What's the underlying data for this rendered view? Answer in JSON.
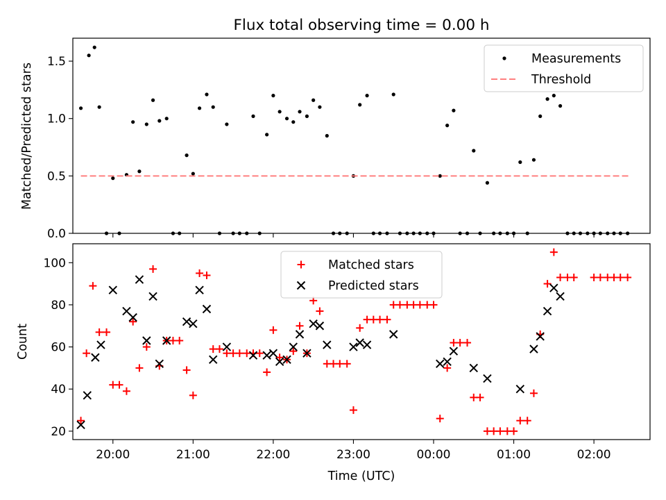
{
  "chart_data": [
    {
      "type": "scatter",
      "title": "Flux total observing time = 0.00 h",
      "xlabel": "",
      "ylabel": "Matched/Predicted stars",
      "ylim": [
        0,
        1.7
      ],
      "yticks": [
        0.0,
        0.5,
        1.0,
        1.5
      ],
      "ytick_labels": [
        "0.0",
        "0.5",
        "1.0",
        "1.5"
      ],
      "xlim": [
        19.5,
        26.7
      ],
      "xticks": [
        20,
        21,
        22,
        23,
        24,
        25,
        26
      ],
      "legend_position": "upper-right",
      "series": [
        {
          "name": "Measurements",
          "kind": "points",
          "color": "#000000",
          "x": [
            19.6,
            19.7,
            19.77,
            19.83,
            19.92,
            20.0,
            20.08,
            20.17,
            20.25,
            20.33,
            20.42,
            20.5,
            20.58,
            20.67,
            20.75,
            20.83,
            20.92,
            21.0,
            21.08,
            21.17,
            21.25,
            21.33,
            21.42,
            21.5,
            21.58,
            21.67,
            21.75,
            21.83,
            21.92,
            22.0,
            22.08,
            22.17,
            22.25,
            22.33,
            22.42,
            22.5,
            22.58,
            22.67,
            22.75,
            22.83,
            22.92,
            23.0,
            23.08,
            23.17,
            23.25,
            23.33,
            23.42,
            23.5,
            23.58,
            23.67,
            23.75,
            23.83,
            23.92,
            24.0,
            24.08,
            24.17,
            24.25,
            24.33,
            24.42,
            24.5,
            24.58,
            24.67,
            24.75,
            24.83,
            24.92,
            25.0,
            25.08,
            25.17,
            25.25,
            25.33,
            25.42,
            25.5,
            25.58,
            25.67,
            25.75,
            25.83,
            25.92,
            26.0,
            26.08,
            26.17,
            26.25,
            26.33,
            26.42
          ],
          "y": [
            1.09,
            1.55,
            1.62,
            1.1,
            0.0,
            0.48,
            0.0,
            0.51,
            0.97,
            0.54,
            0.95,
            1.16,
            0.98,
            1.0,
            0.0,
            0.0,
            0.68,
            0.52,
            1.09,
            1.21,
            1.1,
            0.0,
            0.95,
            0.0,
            0.0,
            0.0,
            1.02,
            0.0,
            0.86,
            1.2,
            1.06,
            1.0,
            0.97,
            1.06,
            1.02,
            1.16,
            1.1,
            0.85,
            0.0,
            0.0,
            0.0,
            0.5,
            1.12,
            1.2,
            0.0,
            0.0,
            0.0,
            1.21,
            0.0,
            0.0,
            0.0,
            0.0,
            0.0,
            0.0,
            0.5,
            0.94,
            1.07,
            0.0,
            0.0,
            0.72,
            0.0,
            0.44,
            0.0,
            0.0,
            0.0,
            0.0,
            0.62,
            0.0,
            0.64,
            1.02,
            1.17,
            1.2,
            1.11,
            0.0,
            0.0,
            0.0,
            0.0,
            0.0,
            0.0,
            0.0,
            0.0,
            0.0,
            0.0
          ]
        },
        {
          "name": "Threshold",
          "kind": "dashed-line",
          "color": "#ff7f7f",
          "x": [
            19.6,
            26.45
          ],
          "y": [
            0.5,
            0.5
          ]
        }
      ]
    },
    {
      "type": "scatter",
      "title": "",
      "xlabel": "Time (UTC)",
      "ylabel": "Count",
      "ylim": [
        16,
        109
      ],
      "yticks": [
        20,
        40,
        60,
        80,
        100
      ],
      "ytick_labels": [
        "20",
        "40",
        "60",
        "80",
        "100"
      ],
      "xlim": [
        19.5,
        26.7
      ],
      "xticks": [
        20,
        21,
        22,
        23,
        24,
        25,
        26
      ],
      "xtick_labels": [
        "20:00",
        "21:00",
        "22:00",
        "23:00",
        "00:00",
        "01:00",
        "02:00"
      ],
      "legend_position": "upper-center",
      "series": [
        {
          "name": "Matched stars",
          "kind": "plus",
          "color": "#ff0000",
          "x": [
            19.6,
            19.67,
            19.75,
            19.83,
            19.92,
            20.0,
            20.08,
            20.17,
            20.25,
            20.33,
            20.42,
            20.5,
            20.58,
            20.67,
            20.75,
            20.83,
            20.92,
            21.0,
            21.08,
            21.17,
            21.25,
            21.33,
            21.42,
            21.5,
            21.58,
            21.67,
            21.75,
            21.83,
            21.92,
            22.0,
            22.08,
            22.17,
            22.25,
            22.33,
            22.42,
            22.5,
            22.58,
            22.67,
            22.75,
            22.83,
            22.92,
            23.0,
            23.08,
            23.17,
            23.25,
            23.33,
            23.42,
            23.5,
            23.58,
            23.67,
            23.75,
            23.83,
            23.92,
            24.0,
            24.08,
            24.17,
            24.25,
            24.33,
            24.42,
            24.5,
            24.58,
            24.67,
            24.75,
            24.83,
            24.92,
            25.0,
            25.08,
            25.17,
            25.25,
            25.33,
            25.42,
            25.5,
            25.58,
            25.67,
            25.75,
            26.0,
            26.08,
            26.17,
            26.25,
            26.33,
            26.42
          ],
          "y": [
            25,
            57,
            89,
            67,
            67,
            42,
            42,
            39,
            72,
            50,
            60,
            97,
            51,
            63,
            63,
            63,
            49,
            37,
            95,
            94,
            59,
            59,
            57,
            57,
            57,
            57,
            57,
            57,
            48,
            68,
            55,
            54,
            58,
            70,
            57,
            82,
            77,
            52,
            52,
            52,
            52,
            30,
            69,
            73,
            73,
            73,
            73,
            80,
            80,
            80,
            80,
            80,
            80,
            80,
            26,
            50,
            62,
            62,
            62,
            36,
            36,
            20,
            20,
            20,
            20,
            20,
            25,
            25,
            38,
            66,
            90,
            105,
            93,
            93,
            93,
            93,
            93,
            93,
            93,
            93,
            93
          ]
        },
        {
          "name": "Predicted stars",
          "kind": "x",
          "color": "#000000",
          "x": [
            19.6,
            19.68,
            19.78,
            19.85,
            20.0,
            20.17,
            20.25,
            20.33,
            20.42,
            20.5,
            20.58,
            20.67,
            20.92,
            21.0,
            21.08,
            21.17,
            21.25,
            21.42,
            21.75,
            21.92,
            22.0,
            22.08,
            22.17,
            22.25,
            22.33,
            22.42,
            22.5,
            22.58,
            22.67,
            23.0,
            23.08,
            23.17,
            23.5,
            24.08,
            24.17,
            24.25,
            24.5,
            24.67,
            25.08,
            25.25,
            25.33,
            25.42,
            25.5,
            25.58
          ],
          "y": [
            23,
            37,
            55,
            61,
            87,
            77,
            74,
            92,
            63,
            84,
            52,
            63,
            72,
            71,
            87,
            78,
            54,
            60,
            56,
            56,
            57,
            53,
            54,
            60,
            66,
            57,
            71,
            70,
            61,
            60,
            62,
            61,
            66,
            52,
            53,
            58,
            50,
            45,
            40,
            59,
            65,
            77,
            88,
            84
          ]
        }
      ]
    }
  ]
}
